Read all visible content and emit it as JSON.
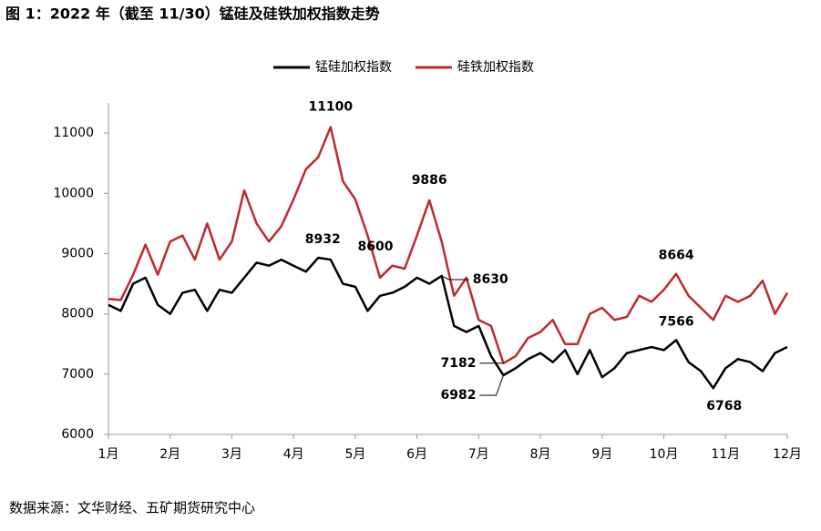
{
  "chart_data": {
    "type": "line",
    "title": "图 1：2022 年（截至 11/30）锰硅及硅铁加权指数走势",
    "source": "数据来源：文华财经、五矿期货研究中心",
    "categories": [
      "1月",
      null,
      null,
      null,
      null,
      "2月",
      null,
      null,
      null,
      null,
      "3月",
      null,
      null,
      null,
      null,
      "4月",
      null,
      null,
      null,
      null,
      "5月",
      null,
      null,
      null,
      null,
      "6月",
      null,
      null,
      null,
      null,
      "7月",
      null,
      null,
      null,
      null,
      "8月",
      null,
      null,
      null,
      null,
      "9月",
      null,
      null,
      null,
      null,
      "10月",
      null,
      null,
      null,
      null,
      "11月",
      null,
      null,
      null,
      null,
      "12月"
    ],
    "series": [
      {
        "name": "锰硅加权指数",
        "color": "#000000",
        "values": [
          8150,
          8050,
          8500,
          8600,
          8150,
          8000,
          8350,
          8400,
          8050,
          8400,
          8350,
          8600,
          8850,
          8800,
          8900,
          8800,
          8700,
          8932,
          8900,
          8500,
          8450,
          8050,
          8300,
          8350,
          8450,
          8600,
          8500,
          8630,
          7800,
          7700,
          7800,
          7300,
          6982,
          7100,
          7250,
          7350,
          7200,
          7400,
          7000,
          7400,
          6950,
          7100,
          7350,
          7400,
          7450,
          7400,
          7566,
          7200,
          7050,
          6768,
          7100,
          7250,
          7200,
          7050,
          7350,
          7450
        ]
      },
      {
        "name": "硅铁加权指数",
        "color": "#c0282d",
        "values": [
          8250,
          8230,
          8650,
          9150,
          8650,
          9200,
          9300,
          8900,
          9500,
          8900,
          9200,
          10050,
          9500,
          9200,
          9450,
          9900,
          10400,
          10600,
          11100,
          10200,
          9900,
          9300,
          8600,
          8800,
          8750,
          9300,
          9886,
          9200,
          8300,
          8600,
          7900,
          7800,
          7182,
          7300,
          7600,
          7700,
          7900,
          7500,
          7500,
          8000,
          8100,
          7900,
          7950,
          8300,
          8200,
          8400,
          8664,
          8300,
          8100,
          7900,
          8300,
          8200,
          8300,
          8550,
          8000,
          8350
        ]
      }
    ],
    "ylim": [
      6000,
      11500
    ],
    "yticks": [
      6000,
      7000,
      8000,
      9000,
      10000,
      11000
    ],
    "grid": false,
    "legend": "top"
  }
}
